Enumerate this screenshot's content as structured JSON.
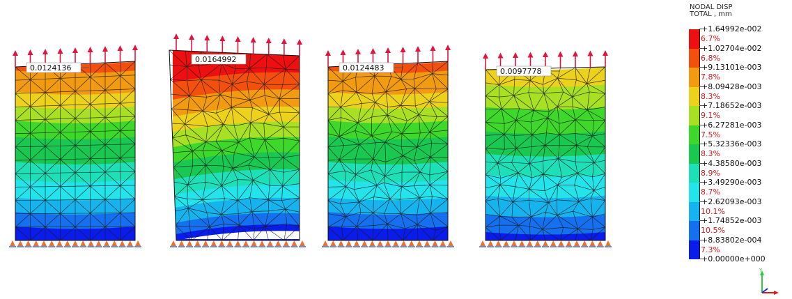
{
  "legend": {
    "title_line1": "NODAL DISP",
    "title_line2": "TOTAL , mm",
    "bands": [
      {
        "color": "#ee1010",
        "percent": "6.7%",
        "upper": "+1.64992e-002"
      },
      {
        "color": "#f2500c",
        "percent": "6.8%",
        "upper": "+1.02704e-002"
      },
      {
        "color": "#f29a10",
        "percent": "7.8%",
        "upper": "+9.13101e-003"
      },
      {
        "color": "#ecd21a",
        "percent": "8.3%",
        "upper": "+8.09428e-003"
      },
      {
        "color": "#a8e024",
        "percent": "9.1%",
        "upper": "+7.18652e-003"
      },
      {
        "color": "#3ed82a",
        "percent": "7.5%",
        "upper": "+6.27281e-003"
      },
      {
        "color": "#18c850",
        "percent": "8.3%",
        "upper": "+5.32336e-003"
      },
      {
        "color": "#1ee0b8",
        "percent": "8.9%",
        "upper": "+4.38580e-003"
      },
      {
        "color": "#22e4ea",
        "percent": "8.7%",
        "upper": "+3.49290e-003"
      },
      {
        "color": "#16b4ee",
        "percent": "10.1%",
        "upper": "+2.62093e-003"
      },
      {
        "color": "#1470ee",
        "percent": "10.5%",
        "upper": "+1.74852e-003"
      },
      {
        "color": "#0a1cea",
        "percent": "7.3%",
        "upper": "+8.83802e-004"
      }
    ],
    "minimum": "+0.00000e+000"
  },
  "models": [
    {
      "name": "model-1",
      "max_label": "0.0124136",
      "mesh": "structured",
      "band_fractions": [
        0.0,
        0.05,
        0.12,
        0.08,
        0.08,
        0.09,
        0.14,
        0.1,
        0.1,
        0.08,
        0.08,
        0.08
      ]
    },
    {
      "name": "model-2",
      "max_label": "0.0164992",
      "mesh": "free",
      "band_fractions": [
        0.17,
        0.09,
        0.09,
        0.08,
        0.08,
        0.08,
        0.09,
        0.08,
        0.07,
        0.08,
        0.06,
        0.03
      ]
    },
    {
      "name": "model-3",
      "max_label": "0.0124483",
      "mesh": "free",
      "band_fractions": [
        0.0,
        0.05,
        0.12,
        0.08,
        0.08,
        0.09,
        0.14,
        0.1,
        0.1,
        0.08,
        0.08,
        0.08
      ]
    },
    {
      "name": "model-4",
      "max_label": "0.0097778",
      "mesh": "free",
      "band_fractions": [
        0.0,
        0.0,
        0.0,
        0.1,
        0.13,
        0.14,
        0.13,
        0.12,
        0.12,
        0.11,
        0.1,
        0.05
      ]
    }
  ],
  "triad": {
    "y_label": "Y",
    "x_label": "X",
    "z_label": "Z",
    "y_color": "#2ecc40",
    "x_color": "#e01818",
    "z_color": "#1428e0"
  }
}
